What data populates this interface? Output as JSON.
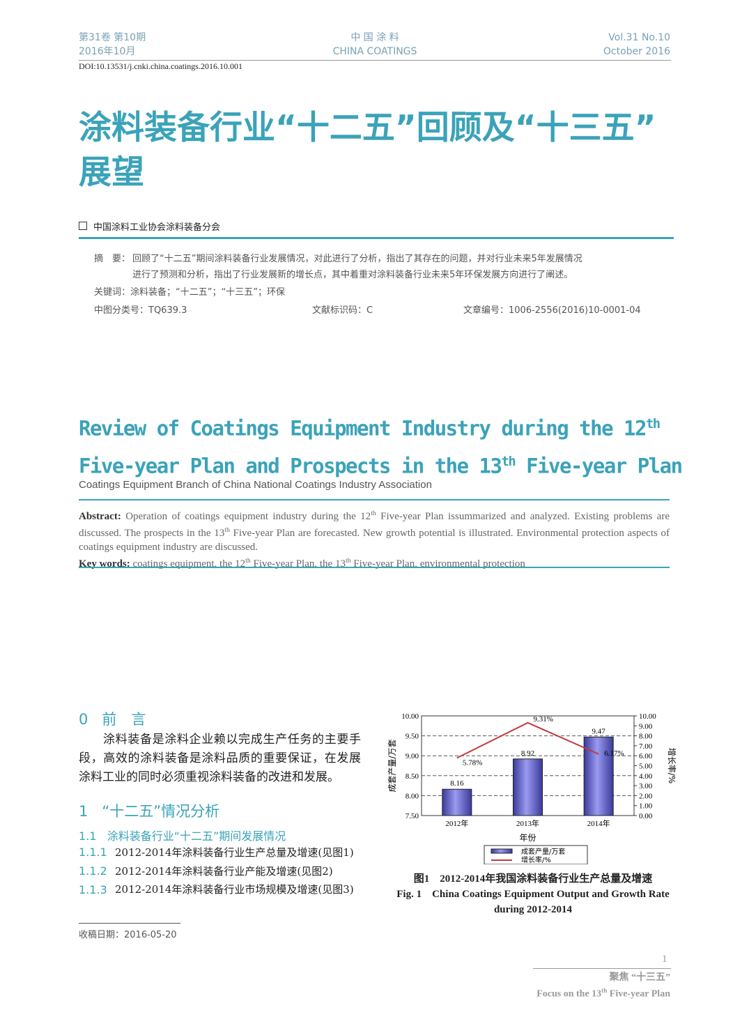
{
  "header": {
    "left1": "第31卷 第10期",
    "left2": "2016年10月",
    "center1": "中 国 涂 料",
    "center2": "CHINA COATINGS",
    "right1": "Vol.31  No.10",
    "right2": "October 2016",
    "doi": "DOI:10.13531/j.cnki.china.coatings.2016.10.001"
  },
  "title_cn_1": "涂料装备行业“十二五”回顾及“十三五”",
  "title_cn_2": "展望",
  "author_cn": "中国涂料工业协会涂料装备分会",
  "abstract_cn": {
    "label": "摘　要：",
    "line1": "回顾了“十二五”期间涂料装备行业发展情况，对此进行了分析，指出了其存在的问题，并对行业未来5年发展情况",
    "line2": "进行了预测和分析，指出了行业发展新的增长点，其中着重对涂料装备行业未来5年环保发展方向进行了阐述。",
    "keywords": "关键词：涂料装备；“十二五”；“十三五”；环保",
    "clc": "中图分类号：TQ639.3",
    "doc_code": "文献标识码：C",
    "article_no": "文章编号：1006-2556(2016)10-0001-04"
  },
  "title_en": {
    "l1a": "Review of Coatings Equipment Industry during the 12",
    "l1sup": "th",
    "l2a": "Five-year Plan and Prospects in the 13",
    "l2sup": "th",
    "l2b": " Five-year Plan"
  },
  "author_en": "Coatings Equipment Branch of China National Coatings Industry Association",
  "abstract_en": {
    "label": "Abstract:",
    "t1": " Operation of coatings equipment industry during the 12",
    "t2": " Five-year Plan issummarized and analyzed. Existing problems are discussed. The prospects in the 13",
    "t3": " Five-year Plan are forecasted. New growth potential is illustrated. Environmental protection aspects of coatings equipment industry are discussed.",
    "kw_label": "Key words:",
    "kw1": " coatings equipment, the 12",
    "kw2": " Five-year Plan, the 13",
    "kw3": " Five-year Plan, environmental protection",
    "th": "th"
  },
  "sections": {
    "s0_num": "0",
    "s0_title": "前　言",
    "s0_text": "涂料装备是涂料企业赖以完成生产任务的主要手段，高效的涂料装备是涂料品质的重要保证，在发展涂料工业的同时必须重视涂料装备的改进和发展。",
    "s1_num": "1",
    "s1_title": "“十二五”情况分析",
    "s11_num": "1.1",
    "s11_title": "涂料装备行业“十二五”期间发展情况",
    "items": [
      {
        "num": "1.1.1",
        "text": "2012-2014年涂料装备行业生产总量及增速(见图1)"
      },
      {
        "num": "1.1.2",
        "text": "2012-2014年涂料装备行业产能及增速(见图2)"
      },
      {
        "num": "1.1.3",
        "text": "2012-2014年涂料装备行业市场规模及增速(见图3)"
      }
    ],
    "received": "收稿日期：2016-05-20"
  },
  "figure": {
    "caption_cn": "图1　2012-2014年我国涂料装备行业生产总量及增速",
    "caption_en": "Fig. 1　China Coatings Equipment Output and Growth Rate during 2012-2014"
  },
  "chart_data": {
    "type": "bar+line",
    "categories": [
      "2012年",
      "2013年",
      "2014年"
    ],
    "xlabel": "年份",
    "ylabel_left": "成套产量/万套",
    "ylabel_right": "增长率/%",
    "ylim_left": [
      7.5,
      10
    ],
    "ylim_right": [
      0,
      10
    ],
    "left_ticks": [
      "7.50",
      "8.00",
      "8.50",
      "9.00",
      "9.50",
      "10.00"
    ],
    "right_ticks": [
      "0.00",
      "1.00",
      "2.00",
      "3.00",
      "4.00",
      "5.00",
      "6.00",
      "7.00",
      "8.00",
      "9.00",
      "10.00"
    ],
    "grid": "dashed-horizontal",
    "legend": "bottom",
    "series": [
      {
        "name": "成套产量/万套",
        "type": "bar",
        "values": [
          8.16,
          8.92,
          9.47
        ],
        "labels": [
          "8.16",
          "8.92",
          "9.47"
        ],
        "color": "#6b6bd8"
      },
      {
        "name": "增长率/%",
        "type": "line",
        "values": [
          5.78,
          9.31,
          6.17
        ],
        "labels": [
          "5.78%",
          "9.31%",
          "6.17%"
        ],
        "color": "#c0393b"
      }
    ]
  },
  "footer": {
    "page": "1",
    "cn": "聚焦 “十三五”",
    "en_a": "Focus on the 13",
    "en_sup": "th",
    "en_b": " Five-year Plan"
  }
}
